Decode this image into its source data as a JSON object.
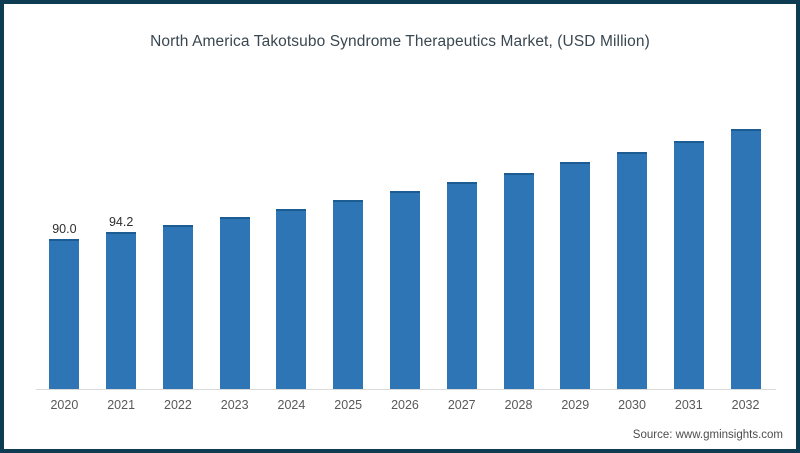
{
  "window": {
    "frame_color": "#0e3c53",
    "background_color": "#ffffff"
  },
  "chart_data": {
    "type": "bar",
    "title": "North America Takotsubo Syndrome Therapeutics Market, (USD Million)",
    "categories": [
      "2020",
      "2021",
      "2022",
      "2023",
      "2024",
      "2025",
      "2026",
      "2027",
      "2028",
      "2029",
      "2030",
      "2031",
      "2032"
    ],
    "values": [
      90.0,
      94.2,
      98.6,
      103.2,
      108.1,
      113.2,
      118.5,
      124.0,
      129.8,
      135.9,
      142.3,
      149.0,
      156.0
    ],
    "data_labels": [
      "90.0",
      "94.2",
      "",
      "",
      "",
      "",
      "",
      "",
      "",
      "",
      "",
      "",
      ""
    ],
    "xlabel": "",
    "ylabel": "",
    "ylim": [
      0,
      170
    ],
    "grid": false,
    "legend": false,
    "bar_color": "#2e75b5",
    "bar_cap_color": "#1d5c92",
    "axis_line_color": "#d9d9d9",
    "tick_label_color": "#595959",
    "title_color": "#3a4750"
  },
  "footer": {
    "source_label": "Source: www.gminsights.com"
  }
}
